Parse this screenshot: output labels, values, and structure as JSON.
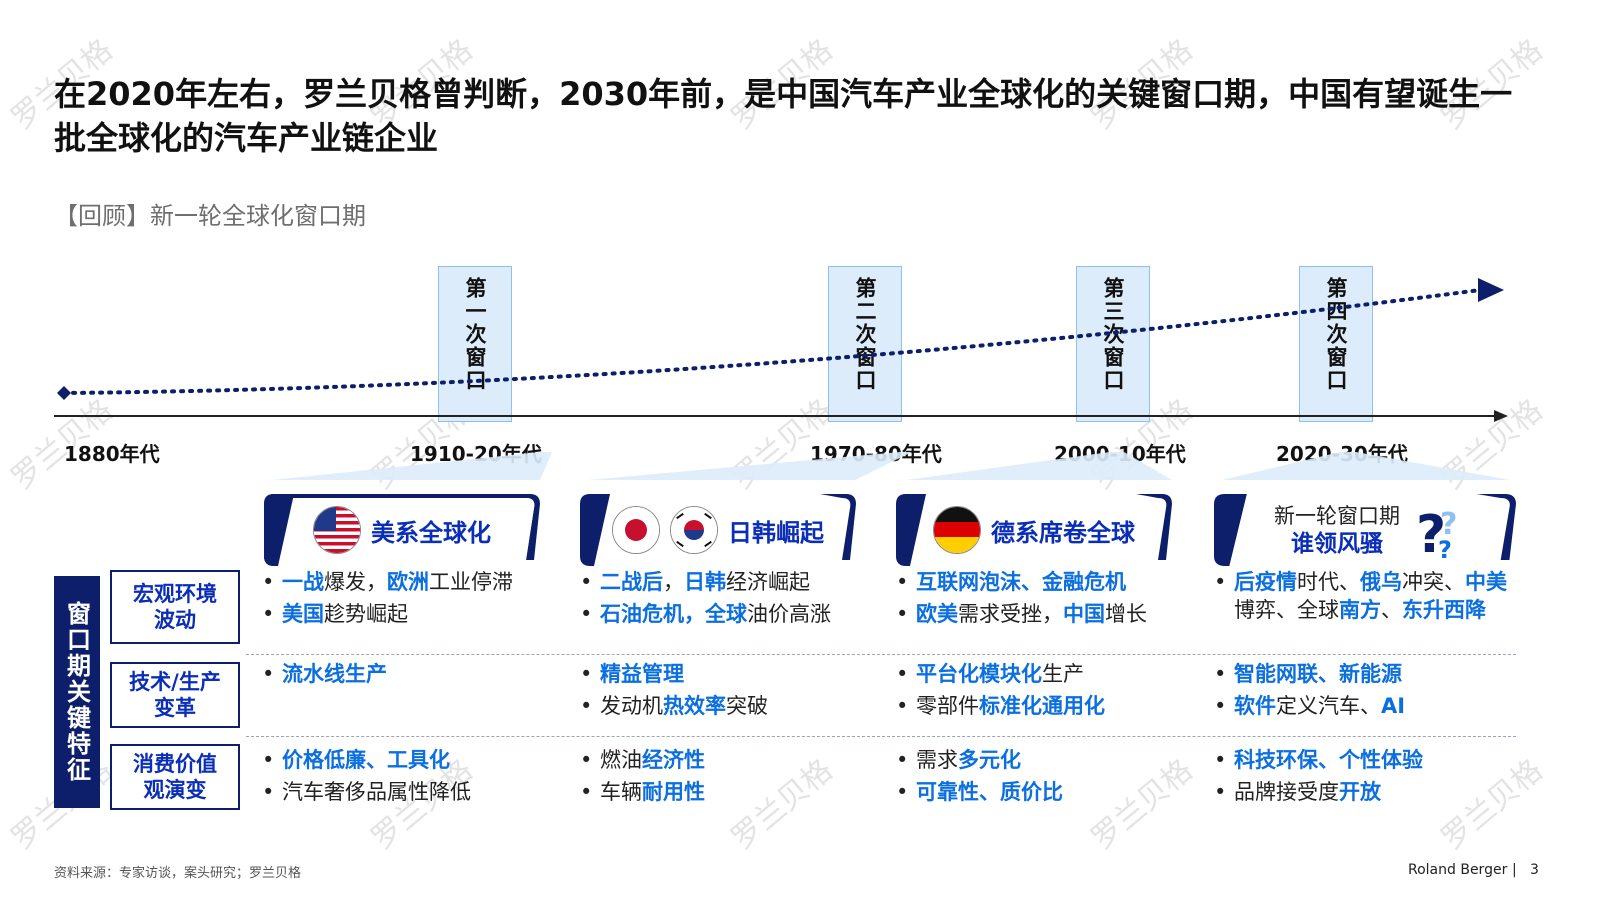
{
  "title": "在2020年左右，罗兰贝格曾判断，2030年前，是中国汽车产业全球化的关键窗口期，中国有望诞生一批全球化的汽车产业链企业",
  "subtitle": "【回顾】新一轮全球化窗口期",
  "watermark": "罗兰贝格",
  "periods": [
    "第一次窗口",
    "第二次窗口",
    "第三次窗口",
    "第四次窗口"
  ],
  "eras": [
    "1880年代",
    "1910-20年代",
    "1970-80年代",
    "2000-10年代",
    "2020-30年代"
  ],
  "cards": [
    {
      "label": "美系全球化",
      "flags": [
        "us-flag-icon"
      ]
    },
    {
      "label": "日韩崛起",
      "flags": [
        "japan-flag-icon",
        "korea-flag-icon"
      ]
    },
    {
      "label": "德系席卷全球",
      "flags": [
        "germany-flag-icon"
      ]
    },
    {
      "label_line1": "新一轮窗口期",
      "label_line2": "谁领风骚",
      "icon": "question-mark-icon"
    }
  ],
  "sidebar_label": "窗口期关键特征",
  "row_heads": [
    "宏观环境波动",
    "技术/生产变革",
    "消费价值观演变"
  ],
  "footer": {
    "source": "资料来源：专家访谈，案头研究；罗兰贝格",
    "brand": "Roland Berger",
    "separator": "|",
    "page": "3"
  },
  "colors": {
    "navy": "#0d1f6a",
    "blue_text": "#0b2eb8",
    "highlight": "#0b6fe0",
    "period_fill": "#dcecfa"
  }
}
